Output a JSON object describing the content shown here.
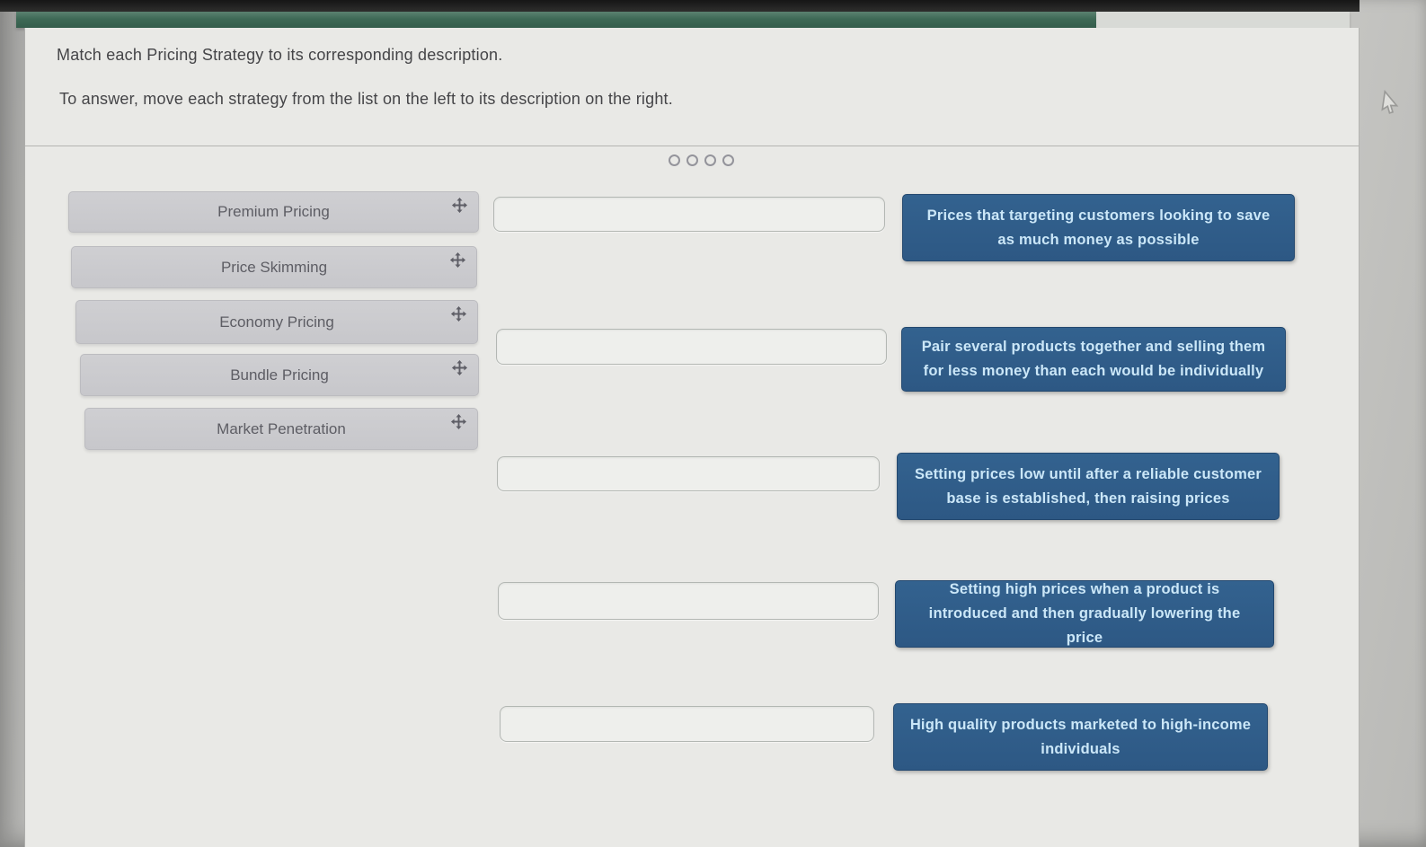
{
  "header": {
    "title": "Match each Pricing Strategy to its corresponding description.",
    "instructions": "To answer, move each strategy from the list on the left to its description on the right."
  },
  "progress": {
    "fill_percent": 81
  },
  "pagination": {
    "dot_count": 4
  },
  "strategies": [
    {
      "label": "Premium Pricing",
      "icon": "move-icon"
    },
    {
      "label": "Price Skimming",
      "icon": "move-icon"
    },
    {
      "label": "Economy Pricing",
      "icon": "move-icon"
    },
    {
      "label": "Bundle Pricing",
      "icon": "move-icon"
    },
    {
      "label": "Market Penetration",
      "icon": "move-icon"
    }
  ],
  "drop_zones": [
    {
      "value": ""
    },
    {
      "value": ""
    },
    {
      "value": ""
    },
    {
      "value": ""
    },
    {
      "value": ""
    }
  ],
  "descriptions": [
    {
      "text": "Prices that targeting customers looking to save as much money as possible"
    },
    {
      "text": "Pair several products together and selling them for less money than each would be individually"
    },
    {
      "text": "Setting prices low until after a reliable customer base is established, then raising prices"
    },
    {
      "text": "Setting high prices when a product is introduced and then gradually lowering the price"
    },
    {
      "text": "High quality products marketed to high-income individuals"
    }
  ],
  "colors": {
    "progress_fill": "#3e6956",
    "description_bg": "#2f5c8a",
    "description_text": "#cbe7f8",
    "strategy_bg": "#cbcbce",
    "card_bg": "#e9e9e6"
  }
}
